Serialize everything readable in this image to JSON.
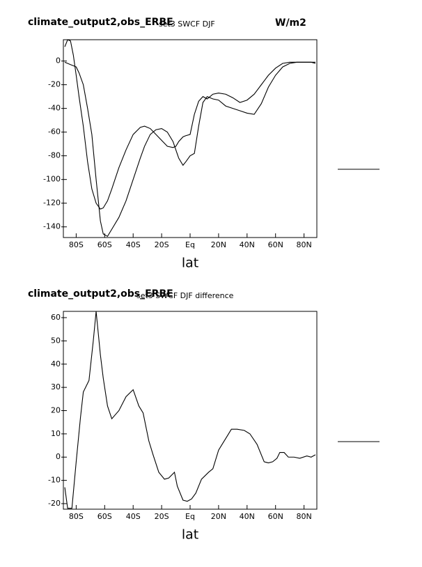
{
  "chart_data": [
    {
      "type": "line",
      "title": "climate_output2,obs_ERBE",
      "subtitle": "set3 SWCF DJF",
      "units": "W/m2",
      "xlabel": "lat",
      "xlim": [
        -89,
        89
      ],
      "ylim": [
        -149,
        18
      ],
      "xticks": [
        {
          "value": -80,
          "label": "80S"
        },
        {
          "value": -60,
          "label": "60S"
        },
        {
          "value": -40,
          "label": "40S"
        },
        {
          "value": -20,
          "label": "20S"
        },
        {
          "value": 0,
          "label": "Eq"
        },
        {
          "value": 20,
          "label": "20N"
        },
        {
          "value": 40,
          "label": "40N"
        },
        {
          "value": 60,
          "label": "60N"
        },
        {
          "value": 80,
          "label": "80N"
        }
      ],
      "yticks": [
        0,
        -20,
        -40,
        -60,
        -80,
        -100,
        -120,
        -140
      ],
      "x": [
        -88,
        -86,
        -84,
        -82,
        -80,
        -78,
        -75,
        -72,
        -69,
        -66,
        -63,
        -61,
        -58,
        -55,
        -50,
        -45,
        -40,
        -35,
        -32,
        -28,
        -24,
        -20,
        -16,
        -12,
        -10,
        -8,
        -5,
        -3,
        0,
        3,
        6,
        9,
        12,
        16,
        20,
        25,
        30,
        35,
        40,
        45,
        50,
        55,
        60,
        65,
        70,
        75,
        80,
        85,
        88
      ],
      "series": [
        {
          "color": "#000000",
          "values": [
            12,
            18,
            17,
            5,
            -12,
            -30,
            -55,
            -85,
            -108,
            -120,
            -125,
            -124,
            -118,
            -108,
            -90,
            -75,
            -62,
            -56,
            -55,
            -57,
            -62,
            -67,
            -72,
            -73,
            -72,
            -68,
            -64,
            -63,
            -62,
            -45,
            -34,
            -30,
            -32,
            -28,
            -27,
            -28,
            -31,
            -35,
            -33,
            -28,
            -20,
            -12,
            -6,
            -2,
            -1,
            -1,
            -1,
            -1,
            -2
          ]
        },
        {
          "color": "#000000",
          "values": [
            -1,
            -2,
            -3,
            -4,
            -5,
            -10,
            -20,
            -40,
            -62,
            -100,
            -135,
            -146,
            -148,
            -142,
            -132,
            -118,
            -100,
            -82,
            -72,
            -62,
            -58,
            -57,
            -60,
            -68,
            -75,
            -82,
            -88,
            -85,
            -80,
            -78,
            -55,
            -35,
            -30,
            -32,
            -33,
            -38,
            -40,
            -42,
            -44,
            -45,
            -36,
            -22,
            -12,
            -5,
            -2,
            -1,
            -1,
            -1,
            -1
          ]
        }
      ]
    },
    {
      "type": "line",
      "title": "climate_output2,obs_ERBE",
      "subtitle": "set3 SWCF DJF difference",
      "xlabel": "lat",
      "xlim": [
        -89,
        89
      ],
      "ylim": [
        -22.4,
        62.7
      ],
      "xticks": [
        {
          "value": -80,
          "label": "80S"
        },
        {
          "value": -60,
          "label": "60S"
        },
        {
          "value": -40,
          "label": "40S"
        },
        {
          "value": -20,
          "label": "20S"
        },
        {
          "value": 0,
          "label": "Eq"
        },
        {
          "value": 20,
          "label": "20N"
        },
        {
          "value": 40,
          "label": "40N"
        },
        {
          "value": 60,
          "label": "60N"
        },
        {
          "value": 80,
          "label": "80N"
        }
      ],
      "yticks": [
        60,
        50,
        40,
        30,
        20,
        10,
        0,
        -10,
        -20
      ],
      "x": [
        -88,
        -86,
        -83,
        -80,
        -77,
        -75,
        -71,
        -68,
        -66,
        -63,
        -61,
        -58,
        -55,
        -50,
        -45,
        -40,
        -36,
        -33,
        -29,
        -26,
        -22,
        -18,
        -15,
        -11,
        -9,
        -5,
        -2,
        1,
        4,
        8,
        13,
        16,
        20,
        23,
        25,
        29,
        33,
        38,
        42,
        47,
        52,
        55,
        58,
        61,
        63,
        66,
        69,
        73,
        77,
        82,
        85,
        88
      ],
      "series": [
        {
          "color": "#000000",
          "values": [
            -13,
            -22,
            -22,
            -2,
            17,
            28,
            33,
            50,
            62.7,
            44,
            34,
            22,
            16.5,
            20,
            26,
            29,
            22,
            19,
            7,
            1,
            -6.5,
            -9.5,
            -9,
            -6.5,
            -12.5,
            -18.5,
            -19,
            -18,
            -15.5,
            -9.5,
            -6.5,
            -5,
            3,
            6,
            8,
            12,
            12,
            11.5,
            10,
            5.5,
            -2,
            -2.5,
            -2,
            -0.5,
            2,
            2,
            0,
            0,
            -0.5,
            0.5,
            0,
            1
          ]
        }
      ]
    }
  ]
}
